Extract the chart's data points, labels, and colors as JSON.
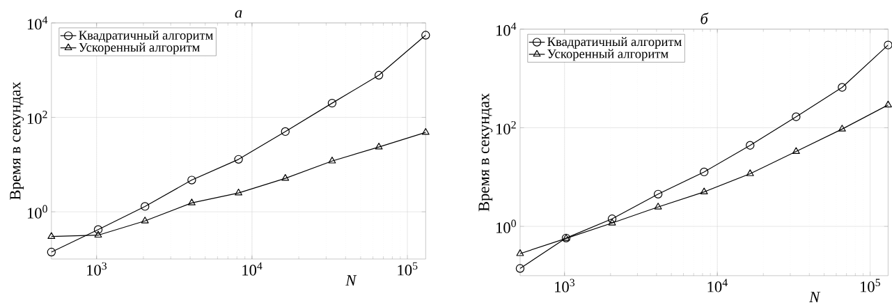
{
  "chart_data": [
    {
      "type": "line",
      "title": "а",
      "xlabel": "N",
      "ylabel": "Время в секундах",
      "log": "xy",
      "grid": true,
      "legend": "top left",
      "x": [
        512,
        1024,
        2048,
        4096,
        8192,
        16384,
        32768,
        65536,
        131072
      ],
      "xlim": [
        512,
        131072
      ],
      "ylim": [
        0.1,
        10000
      ],
      "xticks": [
        {
          "value": 1000,
          "label": "10$^{3}$"
        },
        {
          "value": 10000,
          "label": "10$^{4}$"
        },
        {
          "value": 100000,
          "label": "10$^{5}$"
        }
      ],
      "yticks": [
        {
          "value": 1,
          "label": "10$^{0}$"
        },
        {
          "value": 100,
          "label": "10$^{2}$"
        },
        {
          "value": 10000,
          "label": "10$^{4}$"
        }
      ],
      "series": [
        {
          "name": "Квадратичный алгоритм",
          "color": "#000000",
          "marker": "circle",
          "values": [
            0.14,
            0.42,
            1.3,
            4.7,
            12.9,
            50,
            200,
            780,
            5500
          ]
        },
        {
          "name": "Ускоренный алгоритм",
          "color": "#000000",
          "marker": "triangle",
          "values": [
            0.3,
            0.32,
            0.64,
            1.54,
            2.5,
            5.1,
            11.9,
            23.5,
            48
          ]
        }
      ]
    },
    {
      "type": "line",
      "title": "б",
      "xlabel": "N",
      "ylabel": "Время в секундах",
      "log": "xy",
      "grid": true,
      "legend": "top left",
      "x": [
        512,
        1024,
        2048,
        4096,
        8192,
        16384,
        32768,
        65536,
        131072
      ],
      "xlim": [
        512,
        131072
      ],
      "ylim": [
        0.1,
        10000
      ],
      "xticks": [
        {
          "value": 1000,
          "label": "10$^{3}$"
        },
        {
          "value": 10000,
          "label": "10$^{4}$"
        },
        {
          "value": 100000,
          "label": "10$^{5}$"
        }
      ],
      "yticks": [
        {
          "value": 1,
          "label": "10$^{0}$"
        },
        {
          "value": 100,
          "label": "10$^{2}$"
        },
        {
          "value": 10000,
          "label": "10$^{4}$"
        }
      ],
      "series": [
        {
          "name": "Квадратичный алгоритм",
          "color": "#000000",
          "marker": "circle",
          "values": [
            0.14,
            0.58,
            1.42,
            4.5,
            12.7,
            44,
            167,
            660,
            4770
          ]
        },
        {
          "name": "Ускоренный алгоритм",
          "color": "#000000",
          "marker": "triangle",
          "values": [
            0.28,
            0.57,
            1.17,
            2.47,
            5.0,
            11.7,
            33,
            94,
            290
          ]
        }
      ]
    }
  ]
}
